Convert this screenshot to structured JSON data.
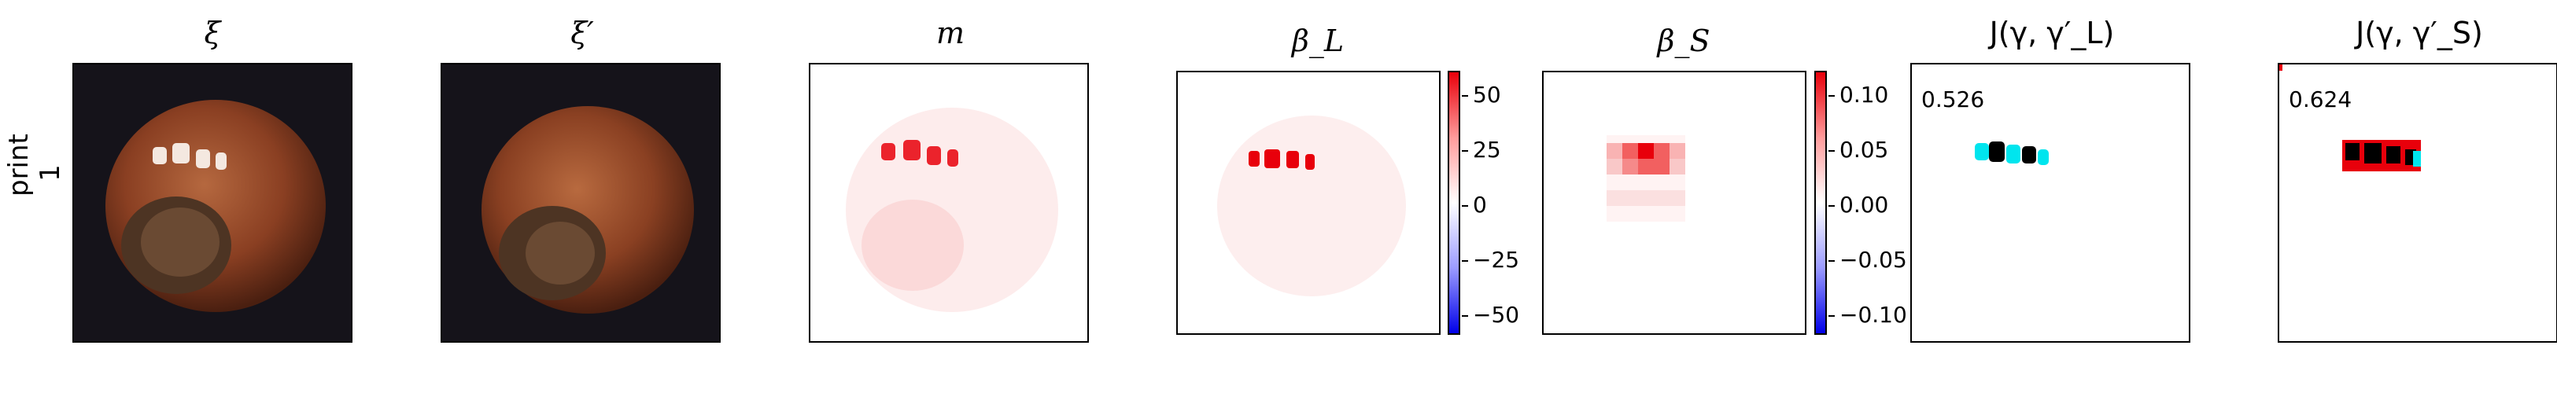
{
  "row_label": "print\n1",
  "panels": [
    {
      "title": "ξ"
    },
    {
      "title": "ξ′"
    },
    {
      "title": "m"
    },
    {
      "title": "β_L"
    },
    {
      "title": "β_S"
    },
    {
      "title": "J(γ, γ′_L)",
      "score": "0.526"
    },
    {
      "title": "J(γ, γ′_S)",
      "score": "0.624"
    }
  ],
  "colorbar_L": {
    "ticks": [
      "50",
      "25",
      "0",
      "−25",
      "−50"
    ]
  },
  "colorbar_S": {
    "ticks": [
      "0.10",
      "0.05",
      "0.00",
      "−0.05",
      "−0.10"
    ]
  },
  "colors": {
    "red": "#e8000b",
    "blue": "#0000e8",
    "cyan": "#00e5ee",
    "black": "#000000",
    "hazel": "#7a3b1e"
  }
}
